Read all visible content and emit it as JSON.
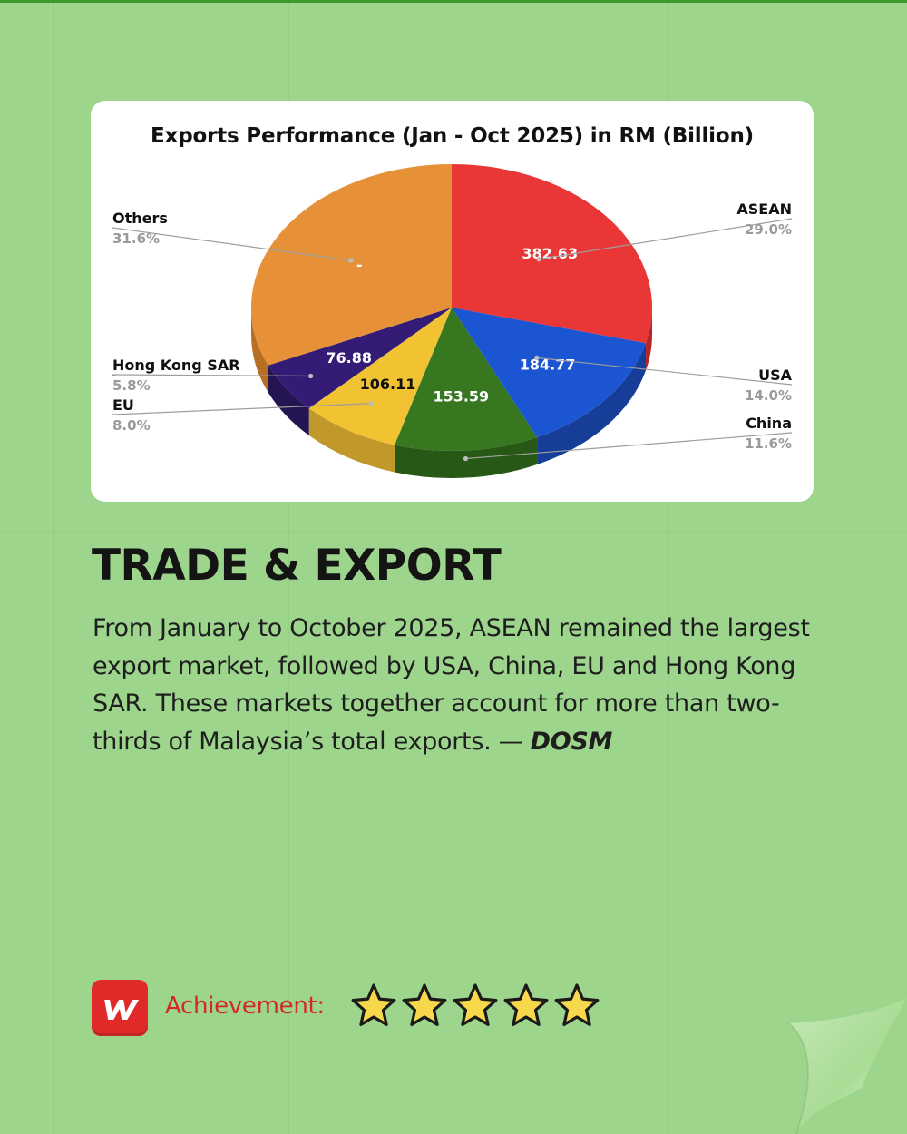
{
  "chart_data": {
    "type": "pie",
    "title": "Exports Performance (Jan - Oct 2025) in RM (Billion)",
    "slices": [
      {
        "label": "ASEAN",
        "value": 382.63,
        "value_label": "382.63",
        "percent_label": "29.0%",
        "color": "#e93636",
        "side_color": "#b82424"
      },
      {
        "label": "USA",
        "value": 184.77,
        "value_label": "184.77",
        "percent_label": "14.0%",
        "color": "#1c55d2",
        "side_color": "#163e98"
      },
      {
        "label": "China",
        "value": 153.59,
        "value_label": "153.59",
        "percent_label": "11.6%",
        "color": "#37771f",
        "side_color": "#285815"
      },
      {
        "label": "EU",
        "value": 106.11,
        "value_label": "106.11",
        "percent_label": "8.0%",
        "color": "#f1c232",
        "side_color": "#c1982a"
      },
      {
        "label": "Hong Kong SAR",
        "value": 76.88,
        "value_label": "76.88",
        "percent_label": "5.8%",
        "color": "#341c76",
        "side_color": "#241452"
      },
      {
        "label": "Others",
        "value": null,
        "value_label": "-",
        "percent_label": "31.6%",
        "color": "#e69138",
        "side_color": "#b76f24"
      }
    ],
    "legend_placement": "callout labels around pie"
  },
  "article": {
    "heading": "TRADE & EXPORT",
    "body": "From January to October 2025, ASEAN remained the largest export market, followed by USA, China, EU and Hong Kong SAR. These markets together account for more than two-thirds of Malaysia’s total exports. — ",
    "source": "DOSM"
  },
  "footer": {
    "achievement_label": "Achievement:",
    "rating": 5,
    "rating_max": 5,
    "logo_icon": "brand-logo-icon",
    "star_color": "#f7d84a"
  }
}
